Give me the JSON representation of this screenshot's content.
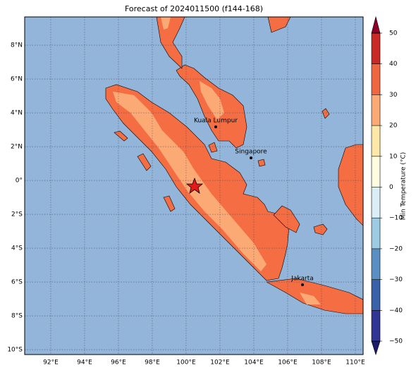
{
  "map": {
    "title": "Forecast of 2024011500 (f144-168)",
    "xlim": [
      90.46,
      110.46
    ],
    "ylim": [
      -10.29,
      9.67
    ],
    "xticks": [
      {
        "value": 92,
        "label": "92°E"
      },
      {
        "value": 94,
        "label": "94°E"
      },
      {
        "value": 96,
        "label": "96°E"
      },
      {
        "value": 98,
        "label": "98°E"
      },
      {
        "value": 100,
        "label": "100°E"
      },
      {
        "value": 102,
        "label": "102°E"
      },
      {
        "value": 104,
        "label": "104°E"
      },
      {
        "value": 106,
        "label": "106°E"
      },
      {
        "value": 108,
        "label": "108°E"
      },
      {
        "value": 110,
        "label": "110°E"
      }
    ],
    "yticks": [
      {
        "value": 8,
        "label": "8°N"
      },
      {
        "value": 6,
        "label": "6°N"
      },
      {
        "value": 4,
        "label": "4°N"
      },
      {
        "value": 2,
        "label": "2°N"
      },
      {
        "value": 0,
        "label": "0°"
      },
      {
        "value": -2,
        "label": "2°S"
      },
      {
        "value": -4,
        "label": "4°S"
      },
      {
        "value": -6,
        "label": "6°S"
      },
      {
        "value": -8,
        "label": "8°S"
      },
      {
        "value": -10,
        "label": "10°S"
      }
    ],
    "cities": [
      "Kuala Lumpur",
      "Singapore",
      "Jakarta"
    ]
  },
  "colorbar": {
    "label": "Min Temperature (°C)",
    "ticks": [
      {
        "value": -50,
        "label": "−50"
      },
      {
        "value": -40,
        "label": "−40"
      },
      {
        "value": -30,
        "label": "−30"
      },
      {
        "value": -20,
        "label": "−20"
      },
      {
        "value": -10,
        "label": "−10"
      },
      0,
      10,
      20,
      30,
      40,
      50
    ],
    "colors": [
      "#1b1b6f",
      "#313695",
      "#3a62a8",
      "#5a8fc4",
      "#9ccbe3",
      "#d9eef5",
      "#fffde0",
      "#fee8a8",
      "#fcaa75",
      "#f06640",
      "#c92a25",
      "#8e0027"
    ]
  }
}
